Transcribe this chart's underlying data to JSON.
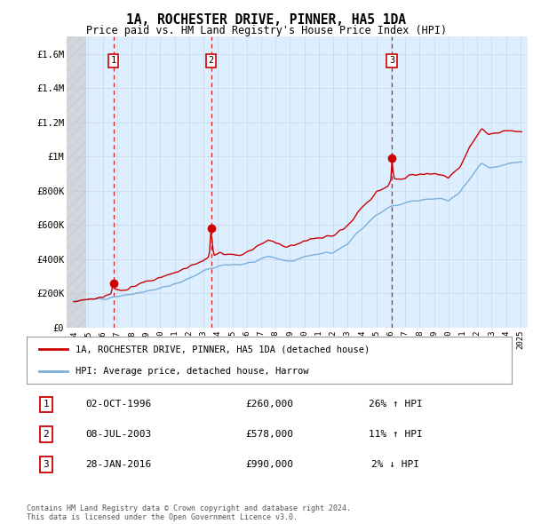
{
  "title": "1A, ROCHESTER DRIVE, PINNER, HA5 1DA",
  "subtitle": "Price paid vs. HM Land Registry's House Price Index (HPI)",
  "legend_line1": "1A, ROCHESTER DRIVE, PINNER, HA5 1DA (detached house)",
  "legend_line2": "HPI: Average price, detached house, Harrow",
  "footer1": "Contains HM Land Registry data © Crown copyright and database right 2024.",
  "footer2": "This data is licensed under the Open Government Licence v3.0.",
  "sale_labels": [
    "1",
    "2",
    "3"
  ],
  "sale_dates_label": [
    "02-OCT-1996",
    "08-JUL-2003",
    "28-JAN-2016"
  ],
  "sale_prices_label": [
    "£260,000",
    "£578,000",
    "£990,000"
  ],
  "sale_hpi_label": [
    "26% ↑ HPI",
    "11% ↑ HPI",
    "2% ↓ HPI"
  ],
  "sale_years": [
    1996.75,
    2003.52,
    2016.07
  ],
  "sale_prices": [
    260000,
    578000,
    990000
  ],
  "ylim": [
    0,
    1700000
  ],
  "xlim_start": 1993.5,
  "xlim_end": 2025.5,
  "price_color": "#cc0000",
  "hpi_color": "#7aafda",
  "vline_color": "#cc0000",
  "bg_color": "#ddeeff",
  "grid_color": "#c0d0e8",
  "yticks": [
    0,
    200000,
    400000,
    600000,
    800000,
    1000000,
    1200000,
    1400000,
    1600000
  ],
  "ytick_labels": [
    "£0",
    "£200K",
    "£400K",
    "£600K",
    "£800K",
    "£1M",
    "£1.2M",
    "£1.4M",
    "£1.6M"
  ],
  "xticks": [
    1994,
    1995,
    1996,
    1997,
    1998,
    1999,
    2000,
    2001,
    2002,
    2003,
    2004,
    2005,
    2006,
    2007,
    2008,
    2009,
    2010,
    2011,
    2012,
    2013,
    2014,
    2015,
    2016,
    2017,
    2018,
    2019,
    2020,
    2021,
    2022,
    2023,
    2024,
    2025
  ],
  "hpi_anchors_x": [
    1994.0,
    1995.0,
    1996.0,
    1997.0,
    1998.5,
    2000.0,
    2001.5,
    2003.0,
    2004.5,
    2005.5,
    2006.5,
    2007.5,
    2008.5,
    2009.3,
    2010.0,
    2011.0,
    2012.0,
    2013.0,
    2014.0,
    2015.0,
    2016.0,
    2016.8,
    2017.5,
    2018.5,
    2019.5,
    2020.0,
    2020.8,
    2021.5,
    2022.3,
    2022.8,
    2023.5,
    2024.2,
    2025.0
  ],
  "hpi_anchors_y": [
    155000,
    162000,
    170000,
    183000,
    200000,
    230000,
    270000,
    330000,
    370000,
    365000,
    385000,
    420000,
    395000,
    390000,
    420000,
    430000,
    440000,
    490000,
    580000,
    660000,
    710000,
    720000,
    740000,
    750000,
    750000,
    740000,
    790000,
    870000,
    960000,
    930000,
    940000,
    960000,
    970000
  ],
  "price_anchors_x": [
    1994.0,
    1995.0,
    1996.0,
    1996.6,
    1996.75,
    1996.9,
    1997.5,
    1998.5,
    2000.0,
    2001.5,
    2003.0,
    2003.4,
    2003.52,
    2003.7,
    2004.5,
    2005.5,
    2006.5,
    2007.5,
    2008.5,
    2009.3,
    2010.0,
    2011.0,
    2012.0,
    2013.0,
    2014.0,
    2015.0,
    2015.8,
    2016.0,
    2016.07,
    2016.2,
    2017.0,
    2017.5,
    2018.5,
    2019.5,
    2020.0,
    2020.8,
    2021.5,
    2022.3,
    2022.8,
    2023.5,
    2024.2,
    2025.0
  ],
  "price_anchors_y": [
    158000,
    165000,
    175000,
    200000,
    260000,
    215000,
    220000,
    255000,
    290000,
    340000,
    390000,
    420000,
    578000,
    420000,
    430000,
    420000,
    460000,
    510000,
    480000,
    480000,
    510000,
    520000,
    540000,
    600000,
    700000,
    790000,
    820000,
    860000,
    990000,
    870000,
    870000,
    890000,
    900000,
    890000,
    875000,
    940000,
    1060000,
    1160000,
    1120000,
    1140000,
    1150000,
    1150000
  ]
}
